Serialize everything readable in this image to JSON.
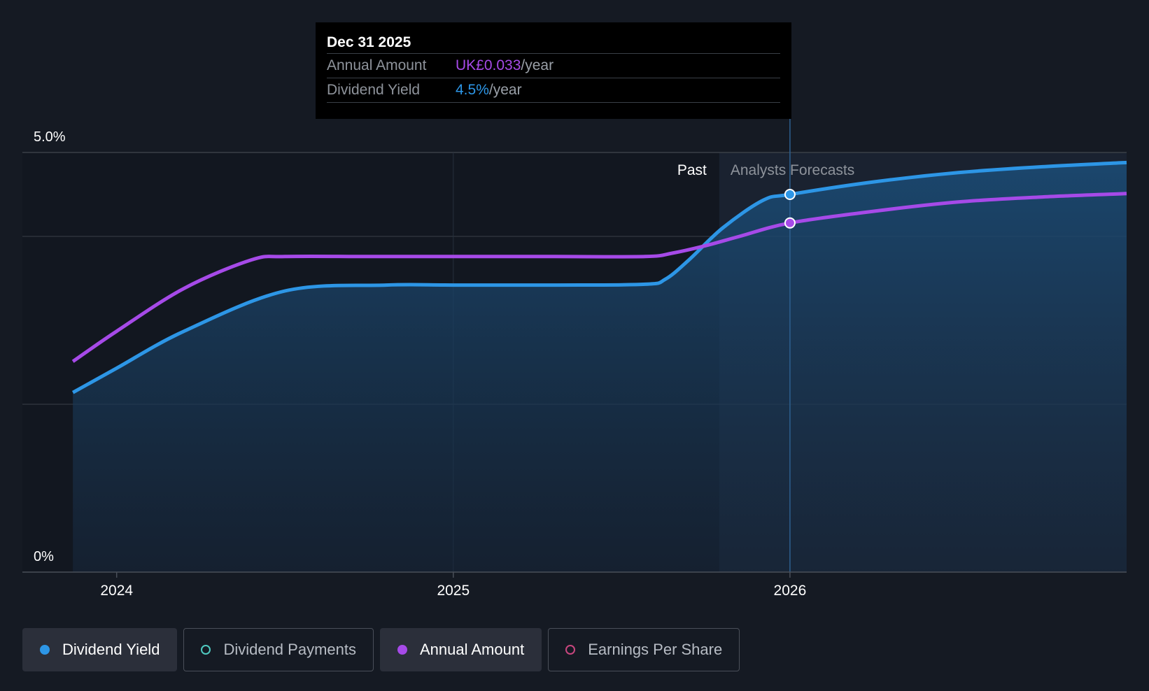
{
  "chart_data": {
    "type": "line",
    "title": "",
    "x_ticks": [
      "2024",
      "2025",
      "2026"
    ],
    "x_tick_values": [
      2024.0,
      2025.0,
      2026.0
    ],
    "x_range": [
      2023.72,
      2027.0
    ],
    "y_tick_labels": [
      "5.0%",
      "0%"
    ],
    "ylim": [
      0,
      5.0
    ],
    "grid": true,
    "past_label": "Past",
    "forecast_label": "Analysts Forecasts",
    "forecast_start": 2025.79,
    "highlight_x": 2026.0,
    "series": [
      {
        "name": "Dividend Yield",
        "color": "#2d96e6",
        "x": [
          2023.87,
          2024.0,
          2024.2,
          2024.5,
          2024.8,
          2025.0,
          2025.3,
          2025.57,
          2025.63,
          2025.7,
          2025.8,
          2025.92,
          2026.0,
          2026.25,
          2026.5,
          2026.75,
          2027.0
        ],
        "values": [
          2.14,
          2.43,
          2.87,
          3.35,
          3.42,
          3.42,
          3.42,
          3.43,
          3.49,
          3.72,
          4.1,
          4.43,
          4.5,
          4.65,
          4.76,
          4.83,
          4.88
        ]
      },
      {
        "name": "Annual Amount",
        "color": "#a64ae8",
        "x": [
          2023.87,
          2024.0,
          2024.2,
          2024.4,
          2024.5,
          2024.75,
          2025.0,
          2025.3,
          2025.57,
          2025.65,
          2025.75,
          2025.85,
          2026.0,
          2026.25,
          2026.5,
          2026.75,
          2027.0
        ],
        "values": [
          2.51,
          2.87,
          3.38,
          3.72,
          3.76,
          3.76,
          3.76,
          3.76,
          3.76,
          3.8,
          3.89,
          4.0,
          4.16,
          4.3,
          4.41,
          4.47,
          4.51
        ]
      }
    ],
    "tooltip": {
      "date": "Dec 31 2025",
      "rows": [
        {
          "label": "Annual Amount",
          "value": "UK£0.033",
          "unit": "/year",
          "color": "#a64ae8"
        },
        {
          "label": "Dividend Yield",
          "value": "4.5%",
          "unit": "/year",
          "color": "#2d96e6"
        }
      ]
    }
  },
  "legend": [
    {
      "label": "Dividend Yield",
      "color": "#2d96e6",
      "active": true
    },
    {
      "label": "Dividend Payments",
      "color": "#4fc9c0",
      "active": false
    },
    {
      "label": "Annual Amount",
      "color": "#a64ae8",
      "active": true
    },
    {
      "label": "Earnings Per Share",
      "color": "#c8467e",
      "active": false
    }
  ]
}
